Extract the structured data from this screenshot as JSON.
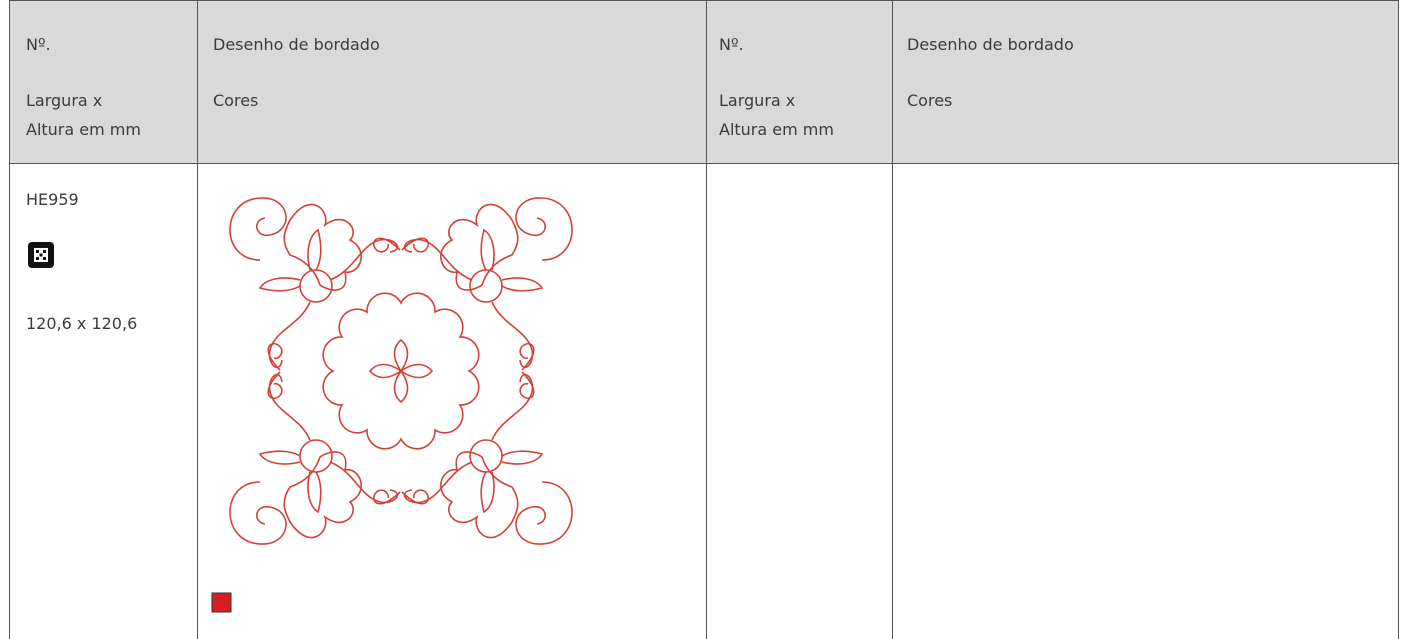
{
  "header": {
    "columns": [
      {
        "number": "Nº.",
        "size_lines": [
          "Largura x",
          "Altura em mm"
        ]
      },
      {
        "design": "Desenho de bordado",
        "colors": "Cores"
      },
      {
        "number": "Nº.",
        "size_lines": [
          "Largura x",
          "Altura em mm"
        ]
      },
      {
        "design": "Desenho de bordado",
        "colors": "Cores"
      }
    ]
  },
  "table": {
    "rows": [
      {
        "number": "HE959",
        "size": "120,6 x 120,6"
      }
    ]
  }
}
